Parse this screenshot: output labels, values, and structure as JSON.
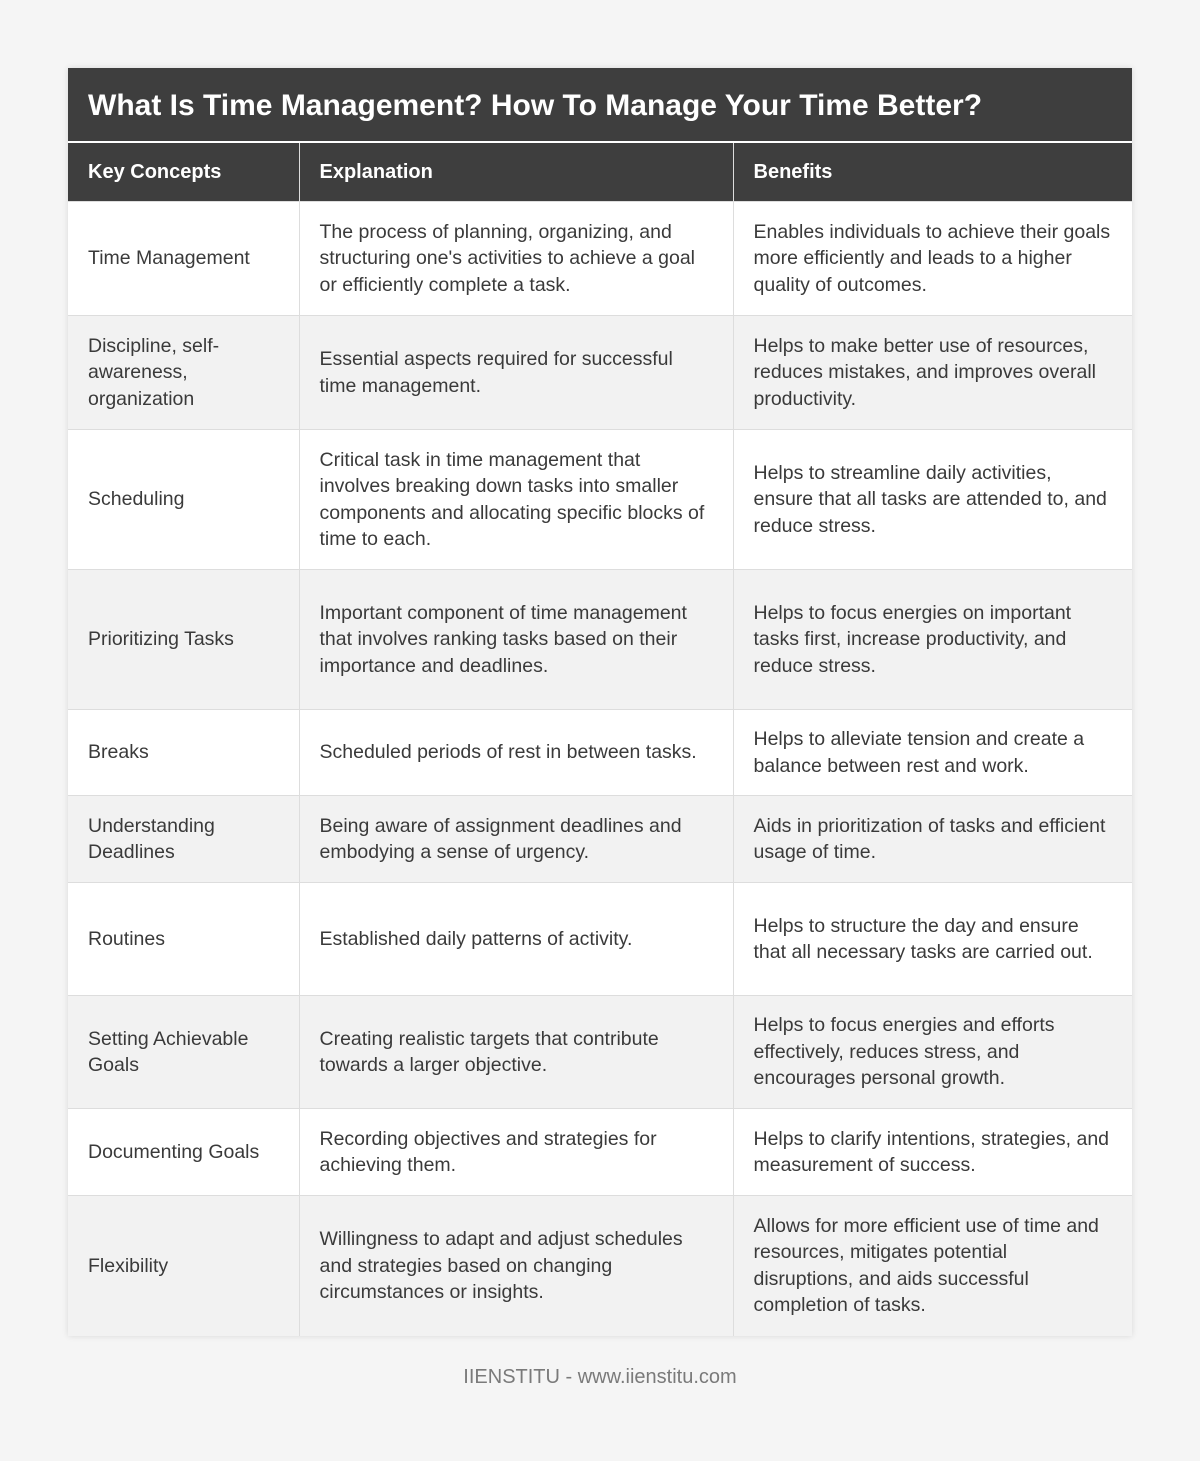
{
  "title": "What Is Time Management? How To Manage Your Time Better?",
  "columns": [
    "Key Concepts",
    "Explanation",
    "Benefits"
  ],
  "rows": [
    [
      "Time Management",
      "The process of planning, organizing, and structuring one's activities to achieve a goal or efficiently complete a task.",
      "Enables individuals to achieve their goals more efficiently and leads to a higher quality of outcomes."
    ],
    [
      "Discipline, self-awareness, organization",
      "Essential aspects required for successful time management.",
      "Helps to make better use of resources, reduces mistakes, and improves overall productivity."
    ],
    [
      "Scheduling",
      "Critical task in time management that involves breaking down tasks into smaller components and allocating specific blocks of time to each.",
      "Helps to streamline daily activities, ensure that all tasks are attended to, and reduce stress."
    ],
    [
      "Prioritizing Tasks",
      "Important component of time management that involves ranking tasks based on their importance and deadlines.",
      "Helps to focus energies on important tasks first, increase productivity, and reduce stress."
    ],
    [
      "Breaks",
      "Scheduled periods of rest in between tasks.",
      "Helps to alleviate tension and create a balance between rest and work."
    ],
    [
      "Understanding Deadlines",
      "Being aware of assignment deadlines and embodying a sense of urgency.",
      "Aids in prioritization of tasks and efficient usage of time."
    ],
    [
      "Routines",
      "Established daily patterns of activity.",
      "Helps to structure the day and ensure that all necessary tasks are carried out."
    ],
    [
      "Setting Achievable Goals",
      "Creating realistic targets that contribute towards a larger objective.",
      "Helps to focus energies and efforts effectively, reduces stress, and encourages personal growth."
    ],
    [
      "Documenting Goals",
      "Recording objectives and strategies for achieving them.",
      "Helps to clarify intentions, strategies, and measurement of success."
    ],
    [
      "Flexibility",
      "Willingness to adapt and adjust schedules and strategies based on changing circumstances or insights.",
      "Allows for more efficient use of time and resources, mitigates potential disruptions, and aids successful completion of tasks."
    ]
  ],
  "footer": "IIENSTITU - www.iienstitu.com"
}
